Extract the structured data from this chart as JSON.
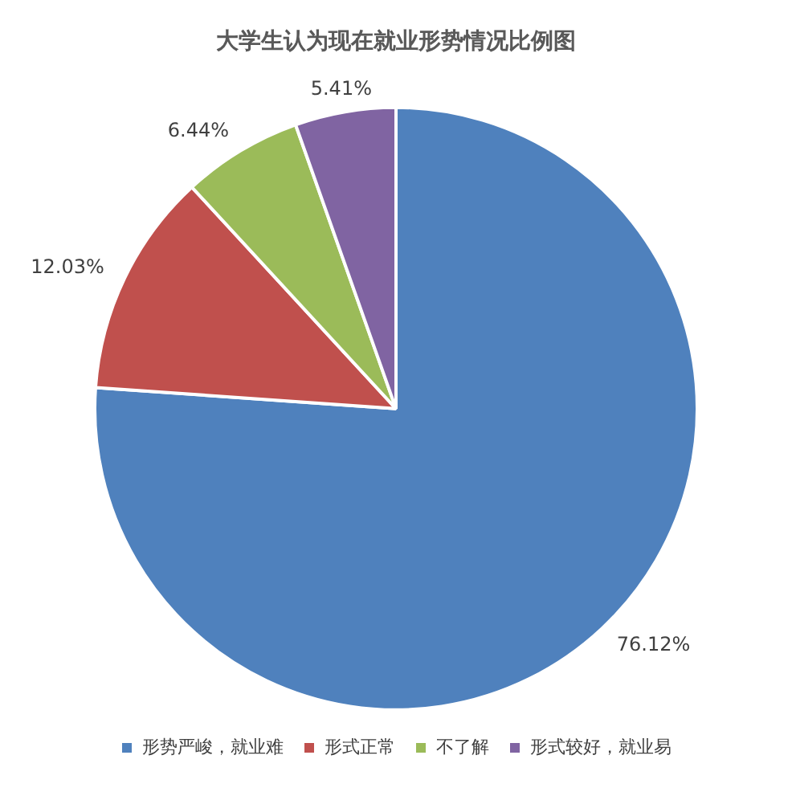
{
  "chart_data": {
    "type": "pie",
    "title": "大学生认为现在就业形势情况比例图",
    "categories": [
      "形势严峻，就业难",
      "形式正常",
      "不了解",
      "形式较好，就业易"
    ],
    "values": [
      76.12,
      12.03,
      6.44,
      5.41
    ],
    "value_labels": [
      "76.12%",
      "12.03%",
      "6.44%",
      "5.41%"
    ],
    "colors": [
      "#4f81bd",
      "#c0504d",
      "#9bbb59",
      "#8064a2"
    ],
    "legend": "bottom"
  }
}
